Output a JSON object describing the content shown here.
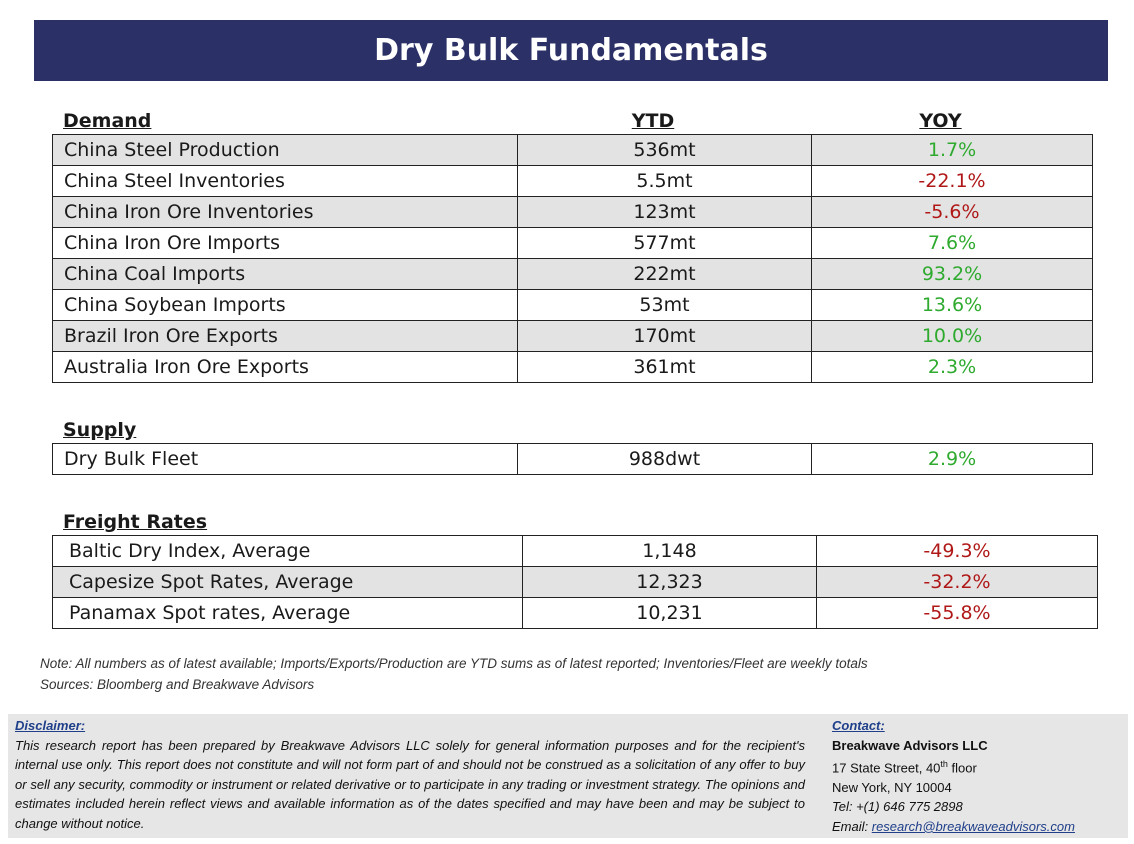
{
  "title": "Dry Bulk Fundamentals",
  "columns": {
    "ytd": "YTD",
    "yoy": "YOY"
  },
  "colors": {
    "header_bg": "#2b3066",
    "positive": "#2eaa2e",
    "negative": "#b01818",
    "row_shade": "#e3e3e3"
  },
  "demand": {
    "heading": "Demand",
    "rows": [
      {
        "name": "China Steel Production",
        "ytd": "536mt",
        "yoy": "1.7%",
        "trend": "positive"
      },
      {
        "name": "China Steel Inventories",
        "ytd": "5.5mt",
        "yoy": "-22.1%",
        "trend": "negative"
      },
      {
        "name": "China Iron Ore Inventories",
        "ytd": "123mt",
        "yoy": "-5.6%",
        "trend": "negative"
      },
      {
        "name": "China Iron Ore Imports",
        "ytd": "577mt",
        "yoy": "7.6%",
        "trend": "positive"
      },
      {
        "name": "China Coal Imports",
        "ytd": "222mt",
        "yoy": "93.2%",
        "trend": "positive"
      },
      {
        "name": "China Soybean Imports",
        "ytd": "53mt",
        "yoy": "13.6%",
        "trend": "positive"
      },
      {
        "name": "Brazil Iron Ore Exports",
        "ytd": "170mt",
        "yoy": "10.0%",
        "trend": "positive"
      },
      {
        "name": "Australia Iron Ore Exports",
        "ytd": "361mt",
        "yoy": "2.3%",
        "trend": "positive"
      }
    ]
  },
  "supply": {
    "heading": "Supply",
    "rows": [
      {
        "name": "Dry Bulk Fleet",
        "ytd": "988dwt",
        "yoy": "2.9%",
        "trend": "positive"
      }
    ]
  },
  "freight": {
    "heading": "Freight Rates",
    "rows": [
      {
        "name": "Baltic Dry Index, Average",
        "ytd": "1,148",
        "yoy": "-49.3%",
        "trend": "negative"
      },
      {
        "name": "Capesize Spot Rates, Average",
        "ytd": "12,323",
        "yoy": "-32.2%",
        "trend": "negative"
      },
      {
        "name": "Panamax Spot rates, Average",
        "ytd": "10,231",
        "yoy": "-55.8%",
        "trend": "negative"
      }
    ]
  },
  "note": "Note:  All numbers as of latest available; Imports/Exports/Production are YTD sums as of latest reported; Inventories/Fleet are weekly totals",
  "sources": "Sources: Bloomberg and Breakwave Advisors",
  "disclaimer": {
    "title": "Disclaimer:",
    "text": "This research report has been prepared by Breakwave Advisors LLC solely for general information purposes and for the recipient's internal use only. This report does not constitute and will not form part of and should not be construed as a solicitation of any offer to buy or sell any security, commodity or instrument or related derivative or to participate in any trading or investment strategy. The opinions and estimates included herein reflect views and available information as of the dates specified and may have been and may be subject to change without notice."
  },
  "contact": {
    "title": "Contact:",
    "company": "Breakwave Advisors LLC",
    "address_number": "17 State Street, 40",
    "address_sup": "th",
    "address_rest": " floor",
    "city": "New York, NY 10004",
    "tel": "Tel: +(1) 646 775 2898",
    "email_label": "Email: ",
    "email": "research@breakwaveadvisors.com"
  }
}
